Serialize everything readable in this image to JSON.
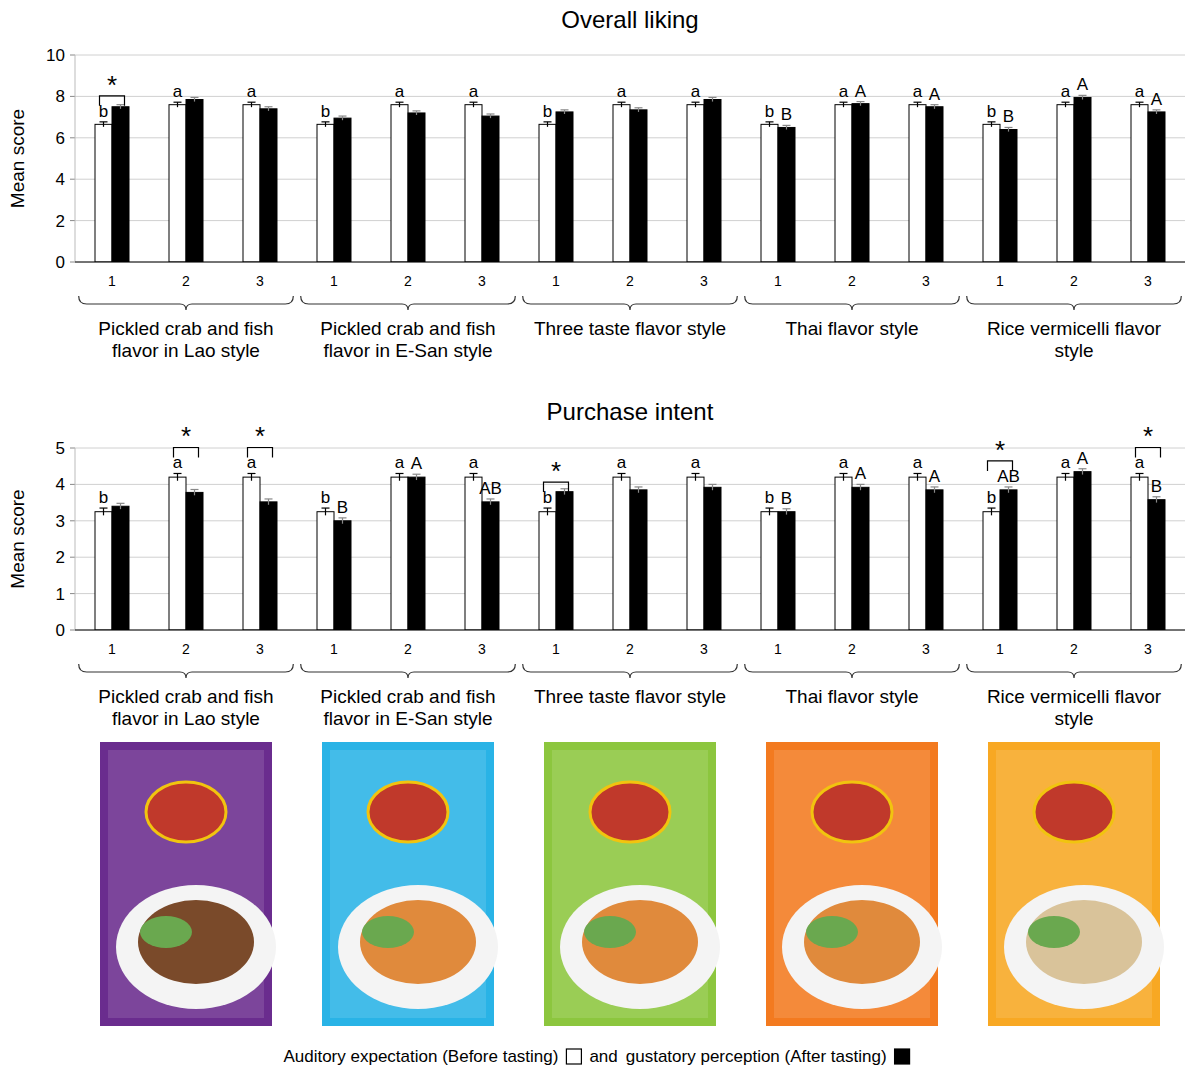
{
  "chart_data": [
    {
      "type": "bar",
      "title": "Overall liking",
      "y_label": "Mean score",
      "categories": [
        "1",
        "2",
        "3",
        "1",
        "2",
        "3",
        "1",
        "2",
        "3",
        "1",
        "2",
        "3",
        "1",
        "2",
        "3"
      ],
      "groups": [
        "Pickled crab and fish flavor in Lao style",
        "Pickled crab and fish flavor in E-San style",
        "Three taste flavor style",
        "Thai flavor style",
        "Rice vermicelli flavor style"
      ],
      "ylim": [
        0,
        10
      ],
      "yticks": [
        0,
        2,
        4,
        6,
        8,
        10
      ],
      "grid": true,
      "series": [
        {
          "color": "#ffffff",
          "values": [
            6.65,
            7.6,
            7.6,
            6.65,
            7.6,
            7.6,
            6.65,
            7.6,
            7.6,
            6.65,
            7.6,
            7.6,
            6.65,
            7.6,
            7.6
          ],
          "errors": [
            0.12,
            0.12,
            0.12,
            0.12,
            0.12,
            0.12,
            0.12,
            0.12,
            0.12,
            0.12,
            0.12,
            0.12,
            0.12,
            0.12,
            0.12
          ],
          "letters": [
            "b",
            "a",
            "a",
            "b",
            "a",
            "a",
            "b",
            "a",
            "a",
            "b",
            "a",
            "a",
            "b",
            "a",
            "a"
          ]
        },
        {
          "color": "#000000",
          "values": [
            7.5,
            7.85,
            7.4,
            6.95,
            7.2,
            7.05,
            7.25,
            7.35,
            7.85,
            6.5,
            7.65,
            7.5,
            6.4,
            7.95,
            7.25
          ],
          "errors": [
            0.1,
            0.1,
            0.1,
            0.1,
            0.1,
            0.1,
            0.1,
            0.1,
            0.1,
            0.1,
            0.1,
            0.1,
            0.1,
            0.1,
            0.1
          ],
          "letters": [
            null,
            null,
            null,
            null,
            null,
            null,
            null,
            null,
            null,
            "B",
            "A",
            "A",
            "B",
            "A",
            "A"
          ]
        }
      ],
      "significance": [
        "*",
        null,
        null,
        null,
        null,
        null,
        null,
        null,
        null,
        null,
        null,
        null,
        null,
        null,
        null
      ]
    },
    {
      "type": "bar",
      "title": "Purchase intent",
      "y_label": "Mean score",
      "categories": [
        "1",
        "2",
        "3",
        "1",
        "2",
        "3",
        "1",
        "2",
        "3",
        "1",
        "2",
        "3",
        "1",
        "2",
        "3"
      ],
      "groups": [
        "Pickled crab and fish flavor in Lao style",
        "Pickled crab and fish flavor in E-San style",
        "Three taste flavor style",
        "Thai flavor style",
        "Rice vermicelli flavor style"
      ],
      "ylim": [
        0,
        5
      ],
      "yticks": [
        0,
        1,
        2,
        3,
        4,
        5
      ],
      "grid": true,
      "legend": "bottom",
      "annotations": [
        "and"
      ],
      "series": [
        {
          "name": "Auditory expectation (Before tasting)",
          "color": "#ffffff",
          "values": [
            3.25,
            4.2,
            4.2,
            3.25,
            4.2,
            4.2,
            3.25,
            4.2,
            4.2,
            3.25,
            4.2,
            4.2,
            3.25,
            4.2,
            4.2
          ],
          "errors": [
            0.1,
            0.1,
            0.1,
            0.1,
            0.1,
            0.1,
            0.1,
            0.1,
            0.1,
            0.1,
            0.1,
            0.1,
            0.1,
            0.1,
            0.1
          ],
          "letters": [
            "b",
            "a",
            "a",
            "b",
            "a",
            "a",
            "b",
            "a",
            "a",
            "b",
            "a",
            "a",
            "b",
            "a",
            "a"
          ]
        },
        {
          "name": "gustatory perception (After tasting)",
          "color": "#000000",
          "values": [
            3.4,
            3.78,
            3.52,
            3.0,
            4.2,
            3.52,
            3.8,
            3.85,
            3.92,
            3.25,
            3.92,
            3.85,
            3.85,
            4.35,
            3.58
          ],
          "errors": [
            0.08,
            0.08,
            0.08,
            0.08,
            0.08,
            0.08,
            0.08,
            0.08,
            0.08,
            0.08,
            0.08,
            0.08,
            0.08,
            0.08,
            0.08
          ],
          "letters": [
            null,
            null,
            null,
            "B",
            "A",
            "AB",
            null,
            null,
            null,
            "B",
            "A",
            "A",
            "AB",
            "A",
            "B"
          ]
        }
      ],
      "significance": [
        null,
        "*",
        "*",
        null,
        null,
        null,
        "*",
        null,
        null,
        null,
        null,
        null,
        "*",
        null,
        "*"
      ]
    }
  ]
}
